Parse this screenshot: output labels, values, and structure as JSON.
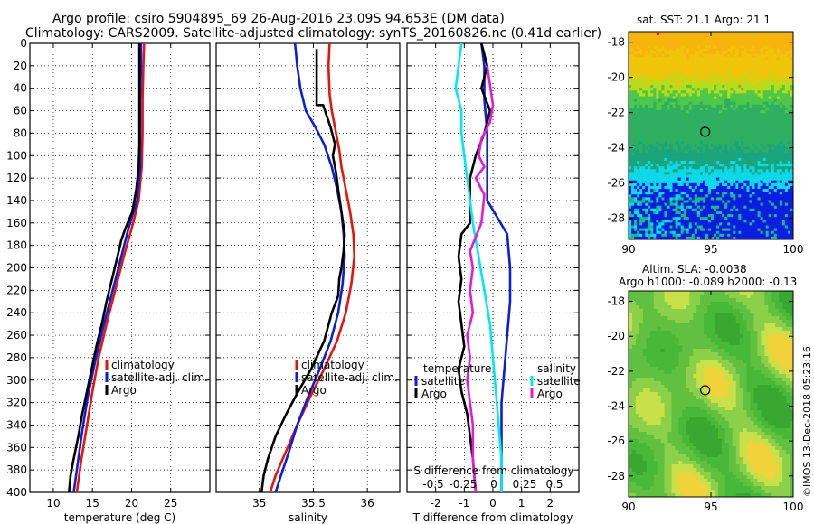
{
  "header": {
    "line1": "Argo profile: csiro 5904895_69 26-Aug-2016 23.09S 94.653E (DM data)",
    "line2": "Climatology: CARS2009. Satellite-adjusted climatology: synTS_20160826.nc (0.41d earlier)"
  },
  "footer": {
    "stamp": "©IMOS 13-Dec-2018 05:23:16"
  },
  "colors": {
    "climatology": "#e8140c",
    "satellite": "#0b1fd6",
    "argo": "#000000",
    "cyan": "#00e8f0",
    "magenta": "#e818d8"
  },
  "chart_data": [
    {
      "id": "temperature",
      "type": "line",
      "xlabel": "temperature (deg C)",
      "ylabel": "",
      "xlim": [
        7,
        30
      ],
      "ylim": [
        400,
        0
      ],
      "xticks": [
        10,
        15,
        20,
        25
      ],
      "xtick_labels": [
        "10",
        "15",
        "20",
        "25"
      ],
      "yticks": [
        0,
        20,
        40,
        60,
        80,
        100,
        120,
        140,
        160,
        180,
        200,
        220,
        240,
        260,
        280,
        300,
        320,
        340,
        360,
        380,
        400
      ],
      "ytick_labels": [
        "0",
        "20",
        "40",
        "60",
        "80",
        "100",
        "120",
        "140",
        "160",
        "180",
        "200",
        "220",
        "240",
        "260",
        "280",
        "300",
        "320",
        "340",
        "360",
        "380",
        "400"
      ],
      "grid": true,
      "legend": [
        "climatology",
        "satellite-adj. clim.",
        "Argo"
      ],
      "series": [
        {
          "name": "climatology",
          "color": "#e8140c",
          "points": [
            [
              21.6,
              0
            ],
            [
              21.5,
              20
            ],
            [
              21.4,
              50
            ],
            [
              21.4,
              80
            ],
            [
              21.3,
              110
            ],
            [
              20.9,
              140
            ],
            [
              20.2,
              160
            ],
            [
              19.0,
              190
            ],
            [
              17.9,
              220
            ],
            [
              16.8,
              250
            ],
            [
              15.8,
              280
            ],
            [
              15.0,
              310
            ],
            [
              14.3,
              340
            ],
            [
              13.6,
              370
            ],
            [
              13.0,
              400
            ]
          ]
        },
        {
          "name": "satellite-adj. clim.",
          "color": "#0b1fd6",
          "points": [
            [
              21.2,
              0
            ],
            [
              21.2,
              20
            ],
            [
              21.1,
              50
            ],
            [
              21.1,
              80
            ],
            [
              21.1,
              110
            ],
            [
              20.7,
              140
            ],
            [
              19.6,
              165
            ],
            [
              18.5,
              195
            ],
            [
              17.4,
              225
            ],
            [
              16.3,
              255
            ],
            [
              15.3,
              285
            ],
            [
              14.4,
              315
            ],
            [
              13.7,
              345
            ],
            [
              13.1,
              375
            ],
            [
              12.6,
              400
            ]
          ]
        },
        {
          "name": "Argo",
          "color": "#000000",
          "points": [
            [
              21.0,
              0
            ],
            [
              21.0,
              30
            ],
            [
              21.0,
              60
            ],
            [
              21.0,
              90
            ],
            [
              20.9,
              110
            ],
            [
              20.6,
              130
            ],
            [
              20.1,
              150
            ],
            [
              19.2,
              165
            ],
            [
              18.7,
              175
            ],
            [
              18.2,
              190
            ],
            [
              17.5,
              210
            ],
            [
              16.8,
              230
            ],
            [
              16.2,
              250
            ],
            [
              15.5,
              270
            ],
            [
              14.9,
              290
            ],
            [
              14.3,
              310
            ],
            [
              13.7,
              330
            ],
            [
              13.2,
              350
            ],
            [
              12.6,
              370
            ],
            [
              12.2,
              385
            ],
            [
              12.0,
              400
            ]
          ]
        }
      ]
    },
    {
      "id": "salinity",
      "type": "line",
      "xlabel": "salinity",
      "ylabel": "",
      "xlim": [
        34.6,
        36.3
      ],
      "ylim": [
        400,
        0
      ],
      "xticks": [
        35,
        35.5,
        36
      ],
      "xtick_labels": [
        "35",
        "35.5",
        "36"
      ],
      "grid": true,
      "legend": [
        "climatology",
        "satellite-adj. clim.",
        "Argo"
      ],
      "series": [
        {
          "name": "climatology",
          "color": "#e8140c",
          "points": [
            [
              35.65,
              0
            ],
            [
              35.64,
              20
            ],
            [
              35.65,
              45
            ],
            [
              35.67,
              60
            ],
            [
              35.7,
              75
            ],
            [
              35.74,
              95
            ],
            [
              35.76,
              110
            ],
            [
              35.8,
              130
            ],
            [
              35.84,
              150
            ],
            [
              35.87,
              170
            ],
            [
              35.88,
              190
            ],
            [
              35.85,
              215
            ],
            [
              35.8,
              240
            ],
            [
              35.72,
              265
            ],
            [
              35.6,
              290
            ],
            [
              35.47,
              315
            ],
            [
              35.35,
              340
            ],
            [
              35.24,
              365
            ],
            [
              35.15,
              385
            ],
            [
              35.1,
              400
            ]
          ]
        },
        {
          "name": "satellite-adj. clim.",
          "color": "#0b1fd6",
          "points": [
            [
              35.33,
              0
            ],
            [
              35.35,
              20
            ],
            [
              35.38,
              40
            ],
            [
              35.43,
              60
            ],
            [
              35.52,
              75
            ],
            [
              35.6,
              90
            ],
            [
              35.67,
              110
            ],
            [
              35.72,
              130
            ],
            [
              35.76,
              150
            ],
            [
              35.78,
              170
            ],
            [
              35.79,
              190
            ],
            [
              35.77,
              215
            ],
            [
              35.73,
              240
            ],
            [
              35.66,
              265
            ],
            [
              35.56,
              290
            ],
            [
              35.45,
              315
            ],
            [
              35.35,
              340
            ],
            [
              35.27,
              365
            ],
            [
              35.2,
              385
            ],
            [
              35.15,
              400
            ]
          ]
        },
        {
          "name": "Argo",
          "color": "#000000",
          "points": [
            [
              35.53,
              5
            ],
            [
              35.53,
              15
            ],
            [
              35.53,
              30
            ],
            [
              35.53,
              40
            ],
            [
              35.53,
              55
            ],
            [
              35.59,
              55
            ],
            [
              35.66,
              75
            ],
            [
              35.7,
              90
            ],
            [
              35.68,
              100
            ],
            [
              35.71,
              115
            ],
            [
              35.73,
              130
            ],
            [
              35.76,
              150
            ],
            [
              35.79,
              170
            ],
            [
              35.78,
              185
            ],
            [
              35.76,
              200
            ],
            [
              35.74,
              210
            ],
            [
              35.73,
              225
            ],
            [
              35.67,
              240
            ],
            [
              35.6,
              265
            ],
            [
              35.48,
              290
            ],
            [
              35.36,
              310
            ],
            [
              35.25,
              330
            ],
            [
              35.15,
              350
            ],
            [
              35.08,
              370
            ],
            [
              35.04,
              385
            ],
            [
              35.02,
              400
            ]
          ]
        }
      ]
    },
    {
      "id": "difference",
      "type": "line",
      "xlabel": "T difference from climatology",
      "ylabel": "",
      "xlim": [
        -3,
        3
      ],
      "ylim": [
        400,
        0
      ],
      "xticks": [
        -2,
        -1,
        0,
        1,
        2
      ],
      "xtick_labels": [
        "-2",
        "-1",
        "0",
        "1",
        "2"
      ],
      "top_axis_label": "S difference from climatology",
      "top_ticks": [
        -0.5,
        -0.25,
        0,
        0.25,
        0.5
      ],
      "top_tick_labels": [
        "-0.5",
        "-0.25",
        "0",
        "0.25",
        "0.5"
      ],
      "grid": true,
      "legend": [
        "temperature",
        "satellite",
        "Argo",
        "salinity",
        "satellite",
        "Argo"
      ],
      "series": [
        {
          "name": "temperature satellite",
          "color": "#0b1fd6",
          "points": [
            [
              -0.4,
              0
            ],
            [
              -0.3,
              20
            ],
            [
              -0.3,
              50
            ],
            [
              -0.2,
              80
            ],
            [
              -0.2,
              110
            ],
            [
              -0.2,
              140
            ],
            [
              0.5,
              170
            ],
            [
              0.6,
              200
            ],
            [
              0.6,
              230
            ],
            [
              0.5,
              260
            ],
            [
              0.4,
              290
            ],
            [
              0.3,
              320
            ],
            [
              0.3,
              360
            ],
            [
              0.3,
              400
            ]
          ]
        },
        {
          "name": "temperature Argo",
          "color": "#000000",
          "points": [
            [
              -0.4,
              0
            ],
            [
              -0.2,
              20
            ],
            [
              -0.4,
              40
            ],
            [
              -0.1,
              60
            ],
            [
              -0.3,
              80
            ],
            [
              -0.6,
              100
            ],
            [
              -0.8,
              120
            ],
            [
              -0.8,
              140
            ],
            [
              -0.8,
              160
            ],
            [
              -1.1,
              170
            ],
            [
              -1.2,
              190
            ],
            [
              -1.1,
              210
            ],
            [
              -1.2,
              230
            ],
            [
              -1.1,
              250
            ],
            [
              -1.0,
              270
            ],
            [
              -1.2,
              290
            ],
            [
              -1.1,
              310
            ],
            [
              -0.9,
              330
            ],
            [
              -0.8,
              350
            ],
            [
              -0.7,
              370
            ],
            [
              -0.6,
              400
            ]
          ]
        },
        {
          "name": "salinity satellite",
          "color": "#00e8f0",
          "points": [
            [
              -1.1,
              0
            ],
            [
              -1.2,
              20
            ],
            [
              -1.3,
              40
            ],
            [
              -1.1,
              60
            ],
            [
              -1.1,
              80
            ],
            [
              -1.0,
              100
            ],
            [
              -0.9,
              120
            ],
            [
              -0.8,
              140
            ],
            [
              -0.7,
              160
            ],
            [
              -0.5,
              190
            ],
            [
              -0.3,
              220
            ],
            [
              -0.1,
              250
            ],
            [
              0.0,
              280
            ],
            [
              0.1,
              310
            ],
            [
              0.2,
              340
            ],
            [
              0.3,
              370
            ],
            [
              0.3,
              400
            ]
          ]
        },
        {
          "name": "salinity Argo",
          "color": "#e818d8",
          "points": [
            [
              -0.2,
              20
            ],
            [
              0.0,
              55
            ],
            [
              -0.1,
              70
            ],
            [
              -0.4,
              85
            ],
            [
              -0.5,
              100
            ],
            [
              -0.3,
              110
            ],
            [
              -0.6,
              120
            ],
            [
              -0.3,
              135
            ],
            [
              -0.4,
              160
            ],
            [
              -0.8,
              185
            ],
            [
              -0.7,
              200
            ],
            [
              -0.8,
              220
            ],
            [
              -0.7,
              240
            ],
            [
              -0.9,
              260
            ],
            [
              -0.8,
              280
            ],
            [
              -0.9,
              300
            ],
            [
              -0.8,
              320
            ],
            [
              -0.7,
              340
            ],
            [
              -0.7,
              370
            ],
            [
              -0.6,
              400
            ]
          ]
        }
      ]
    }
  ],
  "maps": [
    {
      "id": "sst",
      "title": "sat. SST: 21.1 Argo: 21.1",
      "xticks": [
        90,
        95,
        100
      ],
      "xtick_labels": [
        "90",
        "95",
        "100"
      ],
      "yticks": [
        -18,
        -20,
        -22,
        -24,
        -26,
        -28
      ],
      "ytick_labels": [
        "-18",
        "-20",
        "-22",
        "-24",
        "-26",
        "-28"
      ],
      "lon_range": [
        90,
        100
      ],
      "lat_range": [
        -29.2,
        -17.4
      ],
      "marker": [
        94.65,
        -23.09
      ]
    },
    {
      "id": "sla",
      "title1": "Altim. SLA: -0.0038",
      "title2": "Argo h1000: -0.089 h2000: -0.13",
      "xticks": [
        90,
        95,
        100
      ],
      "xtick_labels": [
        "90",
        "95",
        "100"
      ],
      "yticks": [
        -18,
        -20,
        -22,
        -24,
        -26,
        -28
      ],
      "ytick_labels": [
        "-18",
        "-20",
        "-22",
        "-24",
        "-26",
        "-28"
      ],
      "lon_range": [
        90,
        100
      ],
      "lat_range": [
        -29.2,
        -17.4
      ],
      "marker": [
        94.65,
        -23.09
      ]
    }
  ]
}
